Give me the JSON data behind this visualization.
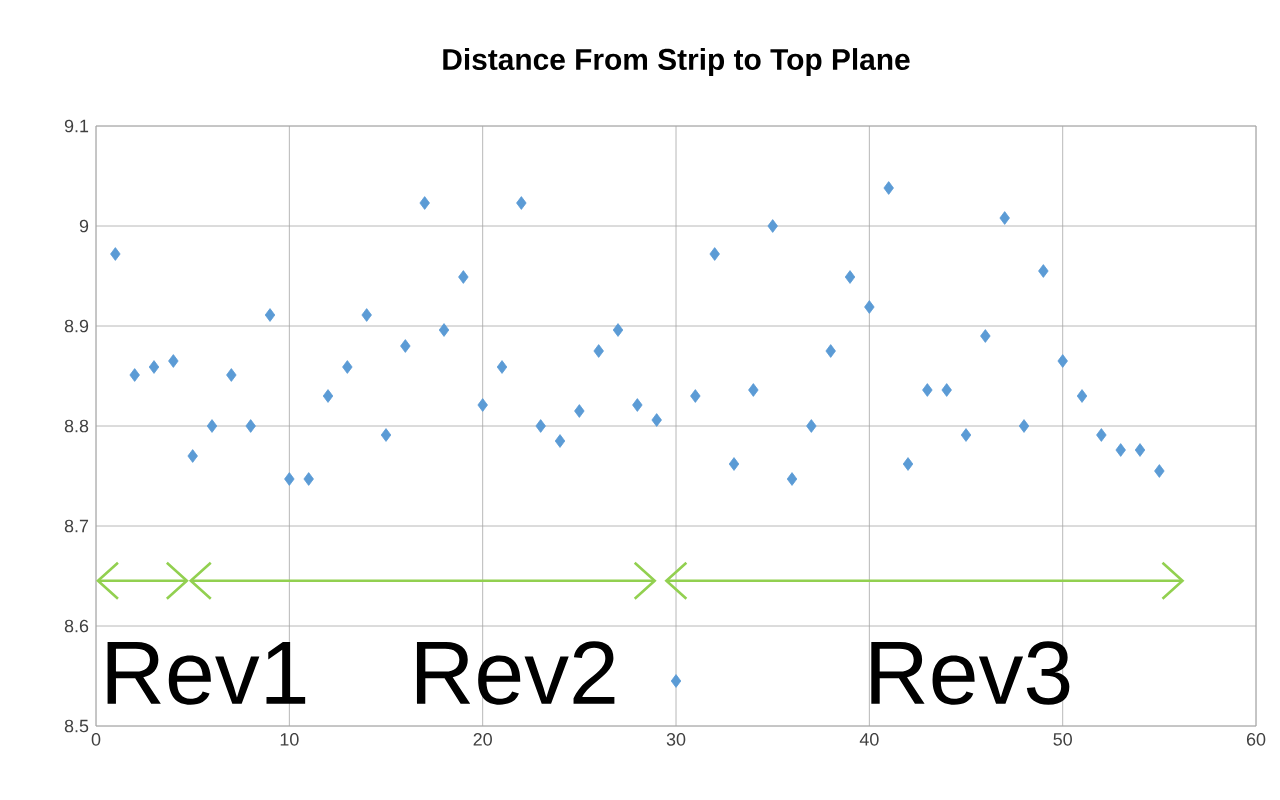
{
  "chart_data": {
    "type": "scatter",
    "title": "Distance From Strip to Top Plane",
    "x": [
      1,
      2,
      3,
      4,
      5,
      6,
      7,
      8,
      9,
      10,
      11,
      12,
      13,
      14,
      15,
      16,
      17,
      18,
      19,
      20,
      21,
      22,
      23,
      24,
      25,
      26,
      27,
      28,
      29,
      30,
      31,
      32,
      33,
      34,
      35,
      36,
      37,
      38,
      39,
      40,
      41,
      42,
      43,
      44,
      45,
      46,
      47,
      48,
      49,
      50,
      51,
      52,
      53,
      54,
      55
    ],
    "values": [
      8.972,
      8.851,
      8.859,
      8.865,
      8.77,
      8.8,
      8.851,
      8.8,
      8.911,
      8.747,
      8.747,
      8.83,
      8.859,
      8.911,
      8.791,
      8.88,
      9.023,
      8.896,
      8.949,
      8.821,
      8.859,
      9.023,
      8.8,
      8.785,
      8.815,
      8.875,
      8.896,
      8.821,
      8.806,
      8.545,
      8.83,
      8.972,
      8.762,
      8.836,
      9.0,
      8.747,
      8.8,
      8.875,
      8.949,
      8.919,
      9.038,
      8.762,
      8.836,
      8.836,
      8.791,
      8.89,
      9.008,
      8.8,
      8.955,
      8.865,
      8.83,
      8.791,
      8.776,
      8.776,
      8.755
    ],
    "color": "#5b9bd5",
    "marker": "diamond",
    "grid": true,
    "xlim": [
      0,
      60
    ],
    "xticks": [
      0,
      10,
      20,
      30,
      40,
      50,
      60
    ],
    "ylim": [
      8.5,
      9.1
    ],
    "yticks": [
      8.5,
      8.6,
      8.7,
      8.8,
      8.9,
      9,
      9.1
    ],
    "annotations": [
      "Rev1",
      "Rev2",
      "Rev3"
    ]
  }
}
